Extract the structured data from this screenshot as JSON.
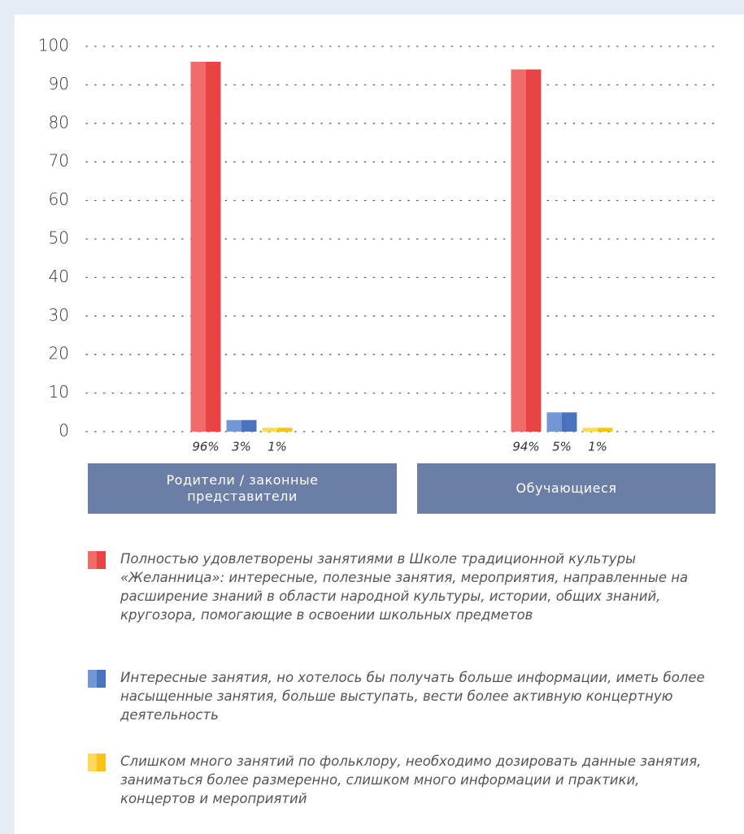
{
  "chart_data": {
    "type": "bar",
    "categories": [
      "Родители / законные представители",
      "Обучающиеся"
    ],
    "series": [
      {
        "name": "Полностью удовлетворены занятиями в Школе традиционной культуры «Желанница»: интересные, полезные занятия, мероприятия, направленные на расширение знаний в области народной культуры, истории, общих знаний, кругозора, помогающие в освоении школьных предметов",
        "color": [
          "#f26b6b",
          "#e84444"
        ],
        "values": [
          96,
          94
        ],
        "value_labels": [
          "96%",
          "94%"
        ]
      },
      {
        "name": "Интересные занятия, но хотелось бы получать больше информации, иметь более насыщенные занятия, больше выступать, вести более активную концертную деятельность",
        "color": [
          "#7397d6",
          "#4a73bd"
        ],
        "values": [
          3,
          5
        ],
        "value_labels": [
          "3%",
          "5%"
        ]
      },
      {
        "name": "Слишком много занятий по фольклору, необходимо дозировать данные занятия, заниматься более размеренно, слишком много информации и практики, концертов и мероприятий",
        "color": [
          "#fdd95c",
          "#f8c21a"
        ],
        "values": [
          1,
          1
        ],
        "value_labels": [
          "1%",
          "1%"
        ]
      }
    ],
    "ylim": [
      0,
      100
    ],
    "yticks": [
      0,
      10,
      20,
      30,
      40,
      50,
      60,
      70,
      80,
      90,
      100
    ],
    "grid": true
  }
}
